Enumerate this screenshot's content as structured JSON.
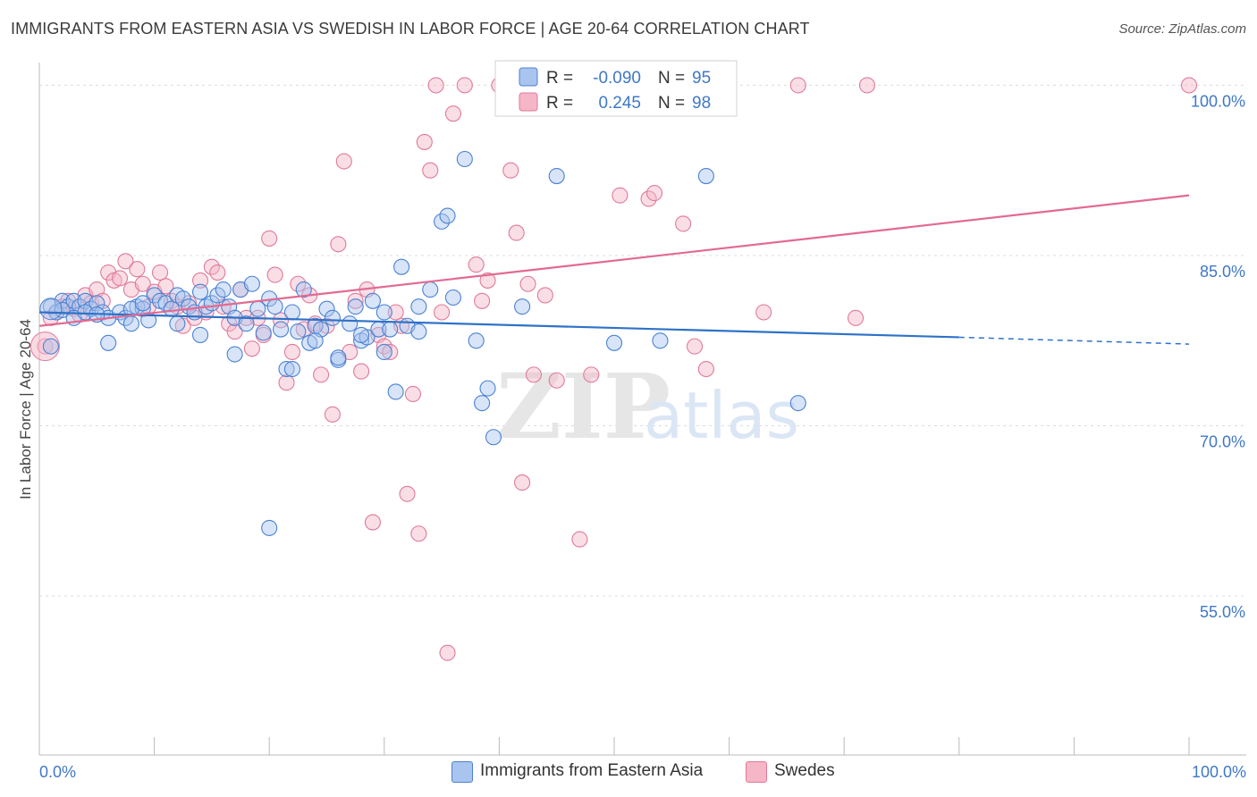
{
  "header": {
    "title": "IMMIGRANTS FROM EASTERN ASIA VS SWEDISH IN LABOR FORCE | AGE 20-64 CORRELATION CHART",
    "source": "Source: ZipAtlas.com"
  },
  "watermark": {
    "part1": "ZIP",
    "part2": "atlas"
  },
  "colors": {
    "blue_fill": "#a9c4ee",
    "blue_stroke": "#4a82d4",
    "blue_line": "#2e72c8",
    "pink_fill": "#f5b6c8",
    "pink_stroke": "#e07a9a",
    "pink_line": "#e26a92",
    "axis_label": "#3f78c7",
    "grid": "#dcdcdc"
  },
  "stats_legend": [
    {
      "r_label": "R =",
      "r_value": "-0.090",
      "n_label": "N =",
      "n_value": "95"
    },
    {
      "r_label": "R =",
      "r_value": "0.245",
      "n_label": "N =",
      "n_value": "98"
    }
  ],
  "bottom_legend": [
    {
      "label": "Immigrants from Eastern Asia"
    },
    {
      "label": "Swedes"
    }
  ],
  "chart_data": {
    "type": "scatter",
    "title": "IMMIGRANTS FROM EASTERN ASIA VS SWEDISH IN LABOR FORCE | AGE 20-64 CORRELATION CHART",
    "xlabel": "",
    "ylabel": "In Labor Force | Age 20-64",
    "xlim": [
      0,
      100
    ],
    "ylim": [
      41,
      102
    ],
    "x_tick_labels": {
      "left": "0.0%",
      "right": "100.0%"
    },
    "y_ticks": [
      {
        "value": 100,
        "label": "100.0%"
      },
      {
        "value": 85,
        "label": "85.0%"
      },
      {
        "value": 70,
        "label": "70.0%"
      },
      {
        "value": 55,
        "label": "55.0%"
      }
    ],
    "grid": true,
    "legend_position": "top-center",
    "series": [
      {
        "name": "Immigrants from Eastern Asia",
        "color": "blue",
        "trend": {
          "x0": 0,
          "y0": 80.0,
          "x1": 80,
          "y1": 77.8,
          "dash_x1": 100,
          "dash_y1": 77.2
        },
        "points": [
          [
            1,
            80.5
          ],
          [
            1.5,
            80.0
          ],
          [
            2,
            81.0
          ],
          [
            2.5,
            80.5
          ],
          [
            3,
            81.0
          ],
          [
            3.5,
            80.5
          ],
          [
            4,
            81.0
          ],
          [
            4.5,
            80.3
          ],
          [
            5,
            80.8
          ],
          [
            5.5,
            80.0
          ],
          [
            6,
            79.5
          ],
          [
            7,
            80.0
          ],
          [
            7.5,
            79.5
          ],
          [
            8,
            79.0
          ],
          [
            8.5,
            80.5
          ],
          [
            9,
            80.3
          ],
          [
            9.5,
            79.3
          ],
          [
            10,
            81.5
          ],
          [
            10.5,
            81.0
          ],
          [
            11,
            80.8
          ],
          [
            11.5,
            80.3
          ],
          [
            12,
            81.5
          ],
          [
            12.5,
            81.2
          ],
          [
            13,
            80.5
          ],
          [
            13.5,
            80.0
          ],
          [
            14,
            81.8
          ],
          [
            14.5,
            80.5
          ],
          [
            15,
            80.8
          ],
          [
            15.5,
            81.5
          ],
          [
            16,
            82.0
          ],
          [
            16.5,
            80.5
          ],
          [
            17,
            79.5
          ],
          [
            17.5,
            82.0
          ],
          [
            18,
            79.0
          ],
          [
            18.5,
            82.5
          ],
          [
            19,
            80.3
          ],
          [
            19.5,
            78.2
          ],
          [
            20,
            81.2
          ],
          [
            20.5,
            80.5
          ],
          [
            21,
            78.5
          ],
          [
            21.5,
            75.0
          ],
          [
            22,
            80.0
          ],
          [
            22.5,
            78.3
          ],
          [
            23,
            82.0
          ],
          [
            23.5,
            77.3
          ],
          [
            24,
            78.8
          ],
          [
            24.5,
            78.5
          ],
          [
            25,
            80.3
          ],
          [
            25.5,
            79.5
          ],
          [
            26,
            75.8
          ],
          [
            27,
            79.0
          ],
          [
            27.5,
            80.5
          ],
          [
            28,
            77.5
          ],
          [
            28.5,
            77.8
          ],
          [
            29,
            81.0
          ],
          [
            29.5,
            78.5
          ],
          [
            30,
            76.5
          ],
          [
            30.5,
            78.5
          ],
          [
            31,
            73.0
          ],
          [
            31.5,
            84.0
          ],
          [
            32,
            78.8
          ],
          [
            33,
            78.3
          ],
          [
            34,
            82.0
          ],
          [
            35,
            88.0
          ],
          [
            35.5,
            88.5
          ],
          [
            36,
            81.3
          ],
          [
            37,
            93.5
          ],
          [
            38,
            77.5
          ],
          [
            38.5,
            72.0
          ],
          [
            39,
            73.3
          ],
          [
            39.5,
            69.0
          ],
          [
            42,
            80.5
          ],
          [
            45,
            92.0
          ],
          [
            50,
            77.3
          ],
          [
            54,
            77.5
          ],
          [
            58,
            92.0
          ],
          [
            66,
            72.0
          ],
          [
            6,
            77.3
          ],
          [
            8,
            80.3
          ],
          [
            9,
            80.8
          ],
          [
            12,
            79.0
          ],
          [
            14,
            78.0
          ],
          [
            17,
            76.3
          ],
          [
            20,
            61.0
          ],
          [
            22,
            75.0
          ],
          [
            24,
            77.5
          ],
          [
            26,
            76.0
          ],
          [
            28,
            78.0
          ],
          [
            30,
            80.0
          ],
          [
            33,
            80.5
          ],
          [
            1,
            77.0
          ],
          [
            2,
            80.2
          ],
          [
            3,
            79.5
          ],
          [
            4,
            80.0
          ],
          [
            5,
            79.8
          ]
        ]
      },
      {
        "name": "Swedes",
        "color": "pink",
        "trend": {
          "x0": 0,
          "y0": 78.8,
          "x1": 100,
          "y1": 90.3
        },
        "points": [
          [
            1,
            79.5
          ],
          [
            1.5,
            80.0
          ],
          [
            2,
            80.5
          ],
          [
            2.5,
            81.0
          ],
          [
            3,
            80.3
          ],
          [
            3.5,
            79.8
          ],
          [
            4,
            81.5
          ],
          [
            4.5,
            80.8
          ],
          [
            5,
            82.0
          ],
          [
            5.5,
            81.0
          ],
          [
            6,
            83.5
          ],
          [
            6.5,
            82.8
          ],
          [
            7,
            83.0
          ],
          [
            7.5,
            84.5
          ],
          [
            8,
            82.0
          ],
          [
            8.5,
            83.8
          ],
          [
            9,
            82.5
          ],
          [
            9.5,
            80.5
          ],
          [
            10,
            81.8
          ],
          [
            10.5,
            83.5
          ],
          [
            11,
            82.3
          ],
          [
            11.5,
            81.0
          ],
          [
            12,
            80.5
          ],
          [
            12.5,
            78.8
          ],
          [
            13,
            80.8
          ],
          [
            13.5,
            79.5
          ],
          [
            14,
            82.8
          ],
          [
            14.5,
            80.0
          ],
          [
            15,
            84.0
          ],
          [
            15.5,
            83.5
          ],
          [
            16,
            80.5
          ],
          [
            16.5,
            79.0
          ],
          [
            17,
            78.3
          ],
          [
            17.5,
            82.0
          ],
          [
            18,
            79.5
          ],
          [
            18.5,
            76.8
          ],
          [
            19,
            79.5
          ],
          [
            19.5,
            78.0
          ],
          [
            20,
            86.5
          ],
          [
            20.5,
            83.3
          ],
          [
            21,
            79.3
          ],
          [
            21.5,
            73.8
          ],
          [
            22,
            76.5
          ],
          [
            22.5,
            82.5
          ],
          [
            23,
            78.5
          ],
          [
            23.5,
            81.5
          ],
          [
            24,
            79.0
          ],
          [
            24.5,
            74.5
          ],
          [
            25,
            78.8
          ],
          [
            25.5,
            71.0
          ],
          [
            26,
            86.0
          ],
          [
            26.5,
            93.3
          ],
          [
            27,
            76.5
          ],
          [
            27.5,
            81.0
          ],
          [
            28,
            74.8
          ],
          [
            28.5,
            82.0
          ],
          [
            29,
            61.5
          ],
          [
            29.5,
            78.0
          ],
          [
            30,
            77.0
          ],
          [
            30.5,
            76.5
          ],
          [
            31,
            80.0
          ],
          [
            31.5,
            78.8
          ],
          [
            32,
            64.0
          ],
          [
            32.5,
            72.8
          ],
          [
            33,
            60.5
          ],
          [
            33.5,
            95.0
          ],
          [
            34,
            92.5
          ],
          [
            34.5,
            100.0
          ],
          [
            35,
            80.0
          ],
          [
            35.5,
            50.0
          ],
          [
            36,
            97.5
          ],
          [
            37,
            100.0
          ],
          [
            38,
            84.2
          ],
          [
            38.5,
            81.0
          ],
          [
            39,
            82.8
          ],
          [
            40,
            100.0
          ],
          [
            41,
            92.5
          ],
          [
            41.5,
            87.0
          ],
          [
            42,
            65.0
          ],
          [
            42.5,
            82.5
          ],
          [
            43,
            74.5
          ],
          [
            44,
            81.5
          ],
          [
            45,
            74.0
          ],
          [
            47,
            60.0
          ],
          [
            48,
            74.5
          ],
          [
            50,
            100.0
          ],
          [
            50.5,
            90.3
          ],
          [
            53,
            90.0
          ],
          [
            53.5,
            90.5
          ],
          [
            56,
            87.8
          ],
          [
            57,
            77.0
          ],
          [
            58,
            75.0
          ],
          [
            63,
            80.0
          ],
          [
            66,
            100.0
          ],
          [
            71,
            79.5
          ],
          [
            72,
            100.0
          ],
          [
            100,
            100.0
          ],
          [
            0.5,
            77.0
          ]
        ]
      }
    ]
  }
}
